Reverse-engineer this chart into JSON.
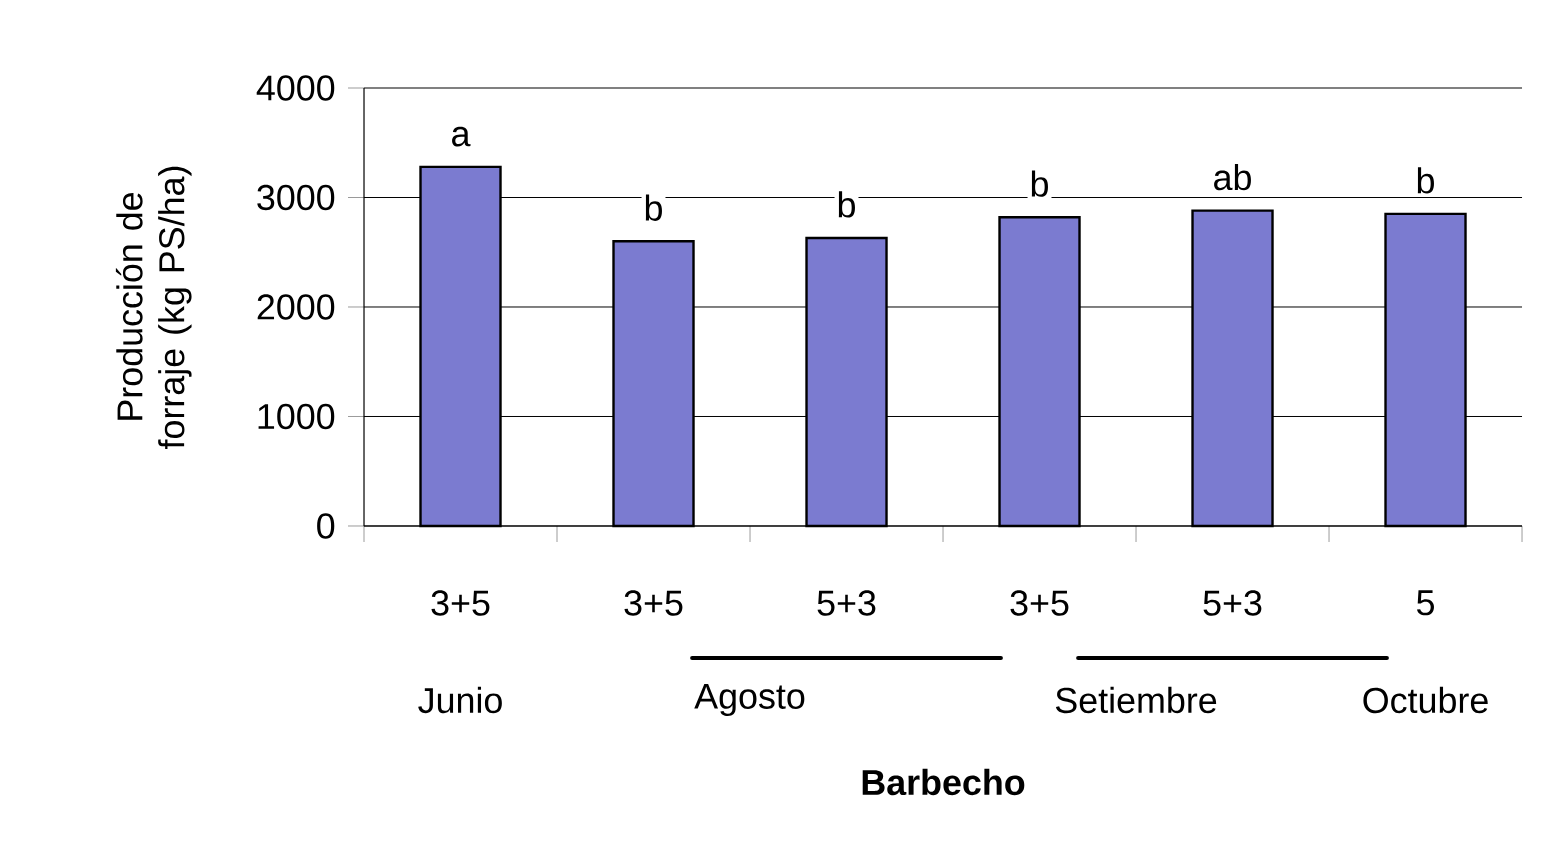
{
  "chart_data": {
    "type": "bar",
    "categories": [
      "3+5",
      "3+5",
      "5+3",
      "3+5",
      "5+3",
      "5"
    ],
    "values": [
      3280,
      2600,
      2630,
      2820,
      2880,
      2850
    ],
    "value_labels": [
      "a",
      "b",
      "b",
      "b",
      "ab",
      "b"
    ],
    "color": "#7b7bd0",
    "ylabel": "Producción de forraje (kg PS/ha)",
    "xlabel": "Barbecho",
    "annotations": [
      "Junio",
      "Agosto",
      "Setiembre",
      "Octubre"
    ],
    "ylim": [
      0,
      4000
    ],
    "yticks": [
      0,
      1000,
      2000,
      3000,
      4000
    ],
    "grid": "y"
  }
}
